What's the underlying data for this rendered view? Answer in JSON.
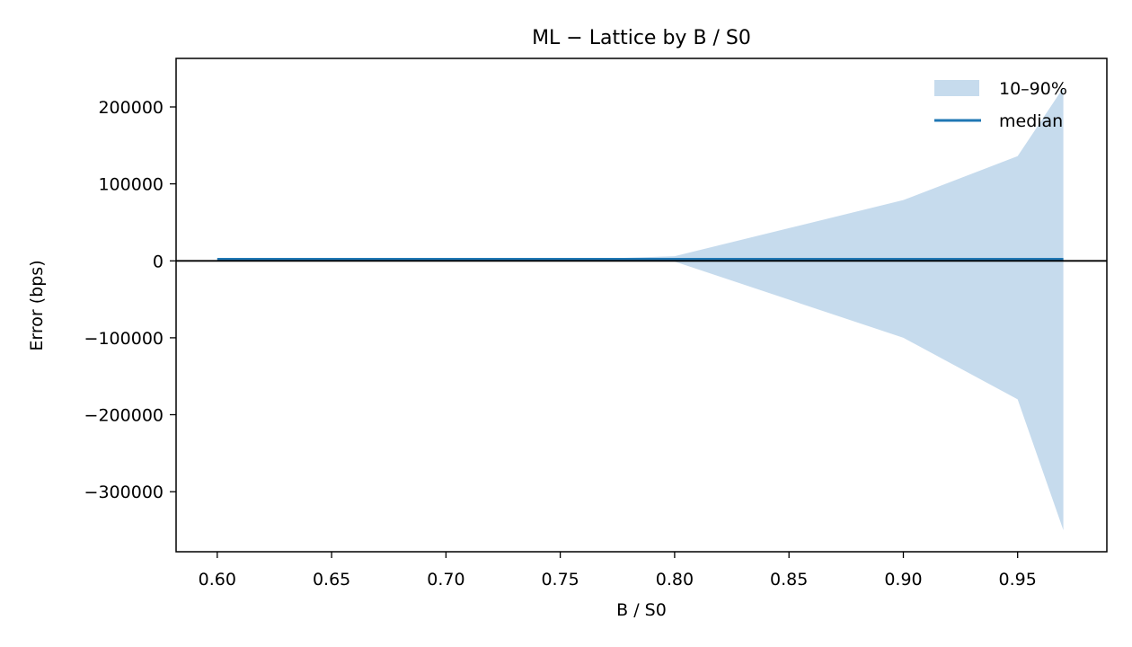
{
  "chart_data": {
    "type": "area",
    "title": "ML − Lattice by B / S0",
    "xlabel": "B / S0",
    "ylabel": "Error (bps)",
    "xlim": [
      0.582,
      0.989
    ],
    "ylim": [
      -378000,
      263000
    ],
    "x_ticks": [
      0.6,
      0.65,
      0.7,
      0.75,
      0.8,
      0.85,
      0.9,
      0.95
    ],
    "x_tick_labels": [
      "0.60",
      "0.65",
      "0.70",
      "0.75",
      "0.80",
      "0.85",
      "0.90",
      "0.95"
    ],
    "y_ticks": [
      200000,
      100000,
      0,
      -100000,
      -200000,
      -300000
    ],
    "y_tick_labels": [
      "200000",
      "100000",
      "0",
      "−100000",
      "−200000",
      "−300000"
    ],
    "grid": false,
    "legend_position": "top-right",
    "zero_line": 0,
    "series": [
      {
        "name": "10–90%",
        "kind": "band",
        "color": "#c6dbed",
        "x": [
          0.6,
          0.65,
          0.7,
          0.75,
          0.8,
          0.9,
          0.95,
          0.97
        ],
        "lower": [
          -200,
          -200,
          -200,
          -300,
          -1000,
          -100000,
          -180000,
          -350000
        ],
        "upper": [
          300,
          400,
          500,
          1000,
          6000,
          79000,
          136000,
          225000
        ]
      },
      {
        "name": "median",
        "kind": "line",
        "color": "#1f77b4",
        "x": [
          0.6,
          0.65,
          0.7,
          0.75,
          0.8,
          0.9,
          0.95,
          0.97
        ],
        "values": [
          2000,
          2000,
          2000,
          2000,
          2000,
          2000,
          2000,
          2000
        ]
      }
    ]
  }
}
